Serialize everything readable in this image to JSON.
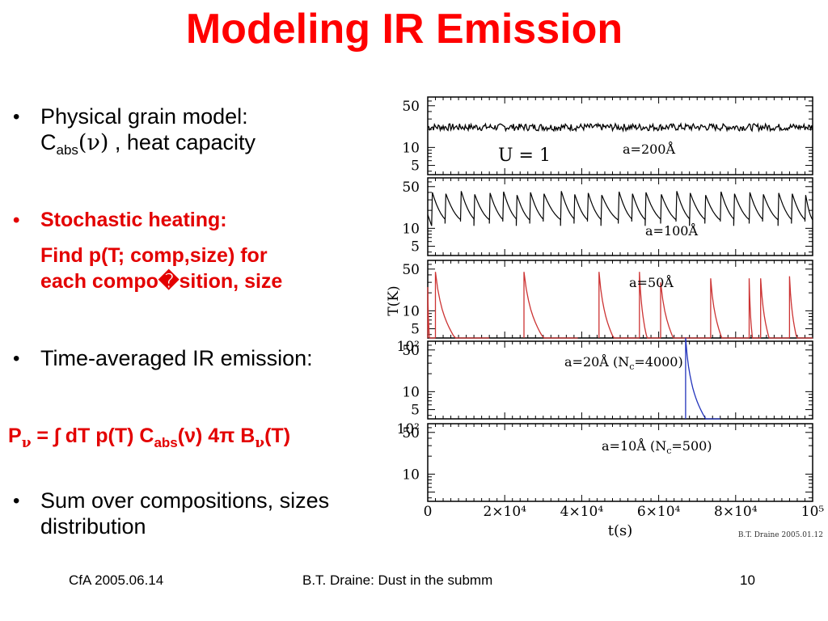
{
  "slide": {
    "title": "Modeling IR Emission",
    "bullets": {
      "b1_line1": "Physical grain model:",
      "b1_C": "C",
      "b1_sub": "abs",
      "b1_paren": "(ν)",
      "b1_rest": " , heat capacity",
      "b2_heading": "Stochastic heating:",
      "b2_line1": "Find p(T; comp,size) for",
      "b2_line2": "each compo�sition, size",
      "b3": "Time-averaged IR emission:",
      "formula": {
        "P": "P",
        "sub_nu": "ν",
        "mid": " = ∫ dT p(T) C",
        "sub_abs": "abs",
        "paren": "(ν) 4π B",
        "sub_nu2": "ν",
        "end": "(T)"
      },
      "b4_line1": "Sum over compositions, sizes",
      "b4_line2": "distribution"
    },
    "bullet_char": "•",
    "footer": {
      "left": "CfA 2005.06.14",
      "center": "B.T. Draine: Dust in the submm",
      "right": "10"
    }
  },
  "chart_data": {
    "type": "line",
    "credit": "B.T. Draine 2005.01.12",
    "xlabel": "t(s)",
    "ylabel": "T(K)",
    "xlim": [
      0,
      100000
    ],
    "x_ticks": [
      "0",
      "2×10⁴",
      "4×10⁴",
      "6×10⁴",
      "8×10⁴",
      "10⁵"
    ],
    "y_scale": "log",
    "panels": [
      {
        "label": "a=200Å",
        "extra_label": "U = 1",
        "color": "#000000",
        "y_ticks": [
          "50",
          "10",
          "5"
        ],
        "baseline_T": 22,
        "behavior": "fluctuating",
        "amplitude_T": [
          19,
          25
        ]
      },
      {
        "label": "a=100Å",
        "color": "#000000",
        "y_ticks": [
          "50",
          "10",
          "5"
        ],
        "behavior": "sawtooth",
        "spike_times": [
          1000,
          4500,
          8500,
          12000,
          16000,
          19500,
          23000,
          26500,
          30000,
          34500,
          38000,
          41500,
          45000,
          49500,
          53000,
          56500,
          60500,
          64500,
          68000,
          72000,
          76000,
          79500,
          83500,
          87000,
          91000,
          94500,
          98000
        ],
        "peak_T": [
          40,
          38,
          42,
          37,
          39,
          41,
          36,
          40,
          38,
          42,
          37,
          39,
          36,
          41,
          38,
          40,
          37,
          42,
          39,
          36,
          41,
          38,
          40,
          37,
          39,
          38,
          36
        ],
        "floor_T": 11
      },
      {
        "label": "a=50Å",
        "color": "#cc3333",
        "y_ticks": [
          "50",
          "10",
          "5"
        ],
        "behavior": "spikes",
        "spike_times": [
          0,
          2000,
          25000,
          44500,
          55000,
          60500,
          73500,
          83500,
          86500,
          94000
        ],
        "peak_T": [
          25,
          45,
          45,
          45,
          45,
          30,
          35,
          35,
          35,
          38
        ],
        "floor_T": 4
      },
      {
        "label": "a=20Å (N",
        "label_sub": "c",
        "label_end": "=4000)",
        "color": "#2233bb",
        "y_ticks": [
          "10²",
          "50",
          "10",
          "5"
        ],
        "behavior": "spikes",
        "spike_times": [
          67000
        ],
        "peak_T": [
          80
        ],
        "floor_T": 5
      },
      {
        "label": "a=10Å (N",
        "label_sub": "c",
        "label_end": "=500)",
        "color": "#000000",
        "y_ticks": [
          "10²",
          "50",
          "10"
        ],
        "behavior": "none"
      }
    ]
  }
}
